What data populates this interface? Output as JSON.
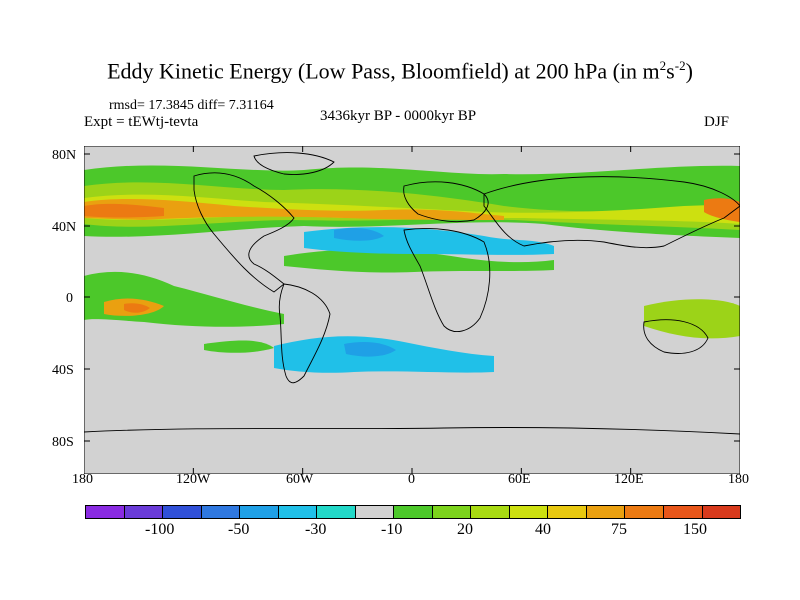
{
  "title": {
    "main": "Eddy Kinetic Energy (Low Pass, Bloomfield) at 200 hPa (in m",
    "sup1": "2",
    "mid": "s",
    "sup2": "-2",
    "end": ")"
  },
  "stats": "rmsd= 17.3845 diff= 7.31164",
  "experiment": "Expt = tEWtj-tevta",
  "period": "3436kyr BP - 0000kyr BP",
  "season": "DJF",
  "axes": {
    "y_labels": [
      "80N",
      "40N",
      "0",
      "40S",
      "80S"
    ],
    "x_labels": [
      "180",
      "120W",
      "60W",
      "0",
      "60E",
      "120E",
      "180"
    ]
  },
  "colorbar": {
    "colors": [
      "#8a2be2",
      "#6a3bd8",
      "#3050d8",
      "#2f78e0",
      "#1fa0e6",
      "#20c0e8",
      "#22d8c8",
      "#d2d2d2",
      "#4cc82a",
      "#7cd31c",
      "#a8da12",
      "#cde010",
      "#e8c810",
      "#eaa010",
      "#ec7a12",
      "#e8561a",
      "#d83a1c"
    ],
    "labels": [
      "-100",
      "-50",
      "-30",
      "-10",
      "20",
      "40",
      "75",
      "150"
    ]
  },
  "colors": {
    "land_fill": "#d2d2d2",
    "coast": "#000000",
    "green": "#4cc82a",
    "lime": "#9cd318",
    "yellow": "#cde010",
    "orange": "#eaa010",
    "deep_orange": "#ec7a12",
    "cyan": "#20c0e8",
    "teal": "#22d8c8"
  }
}
